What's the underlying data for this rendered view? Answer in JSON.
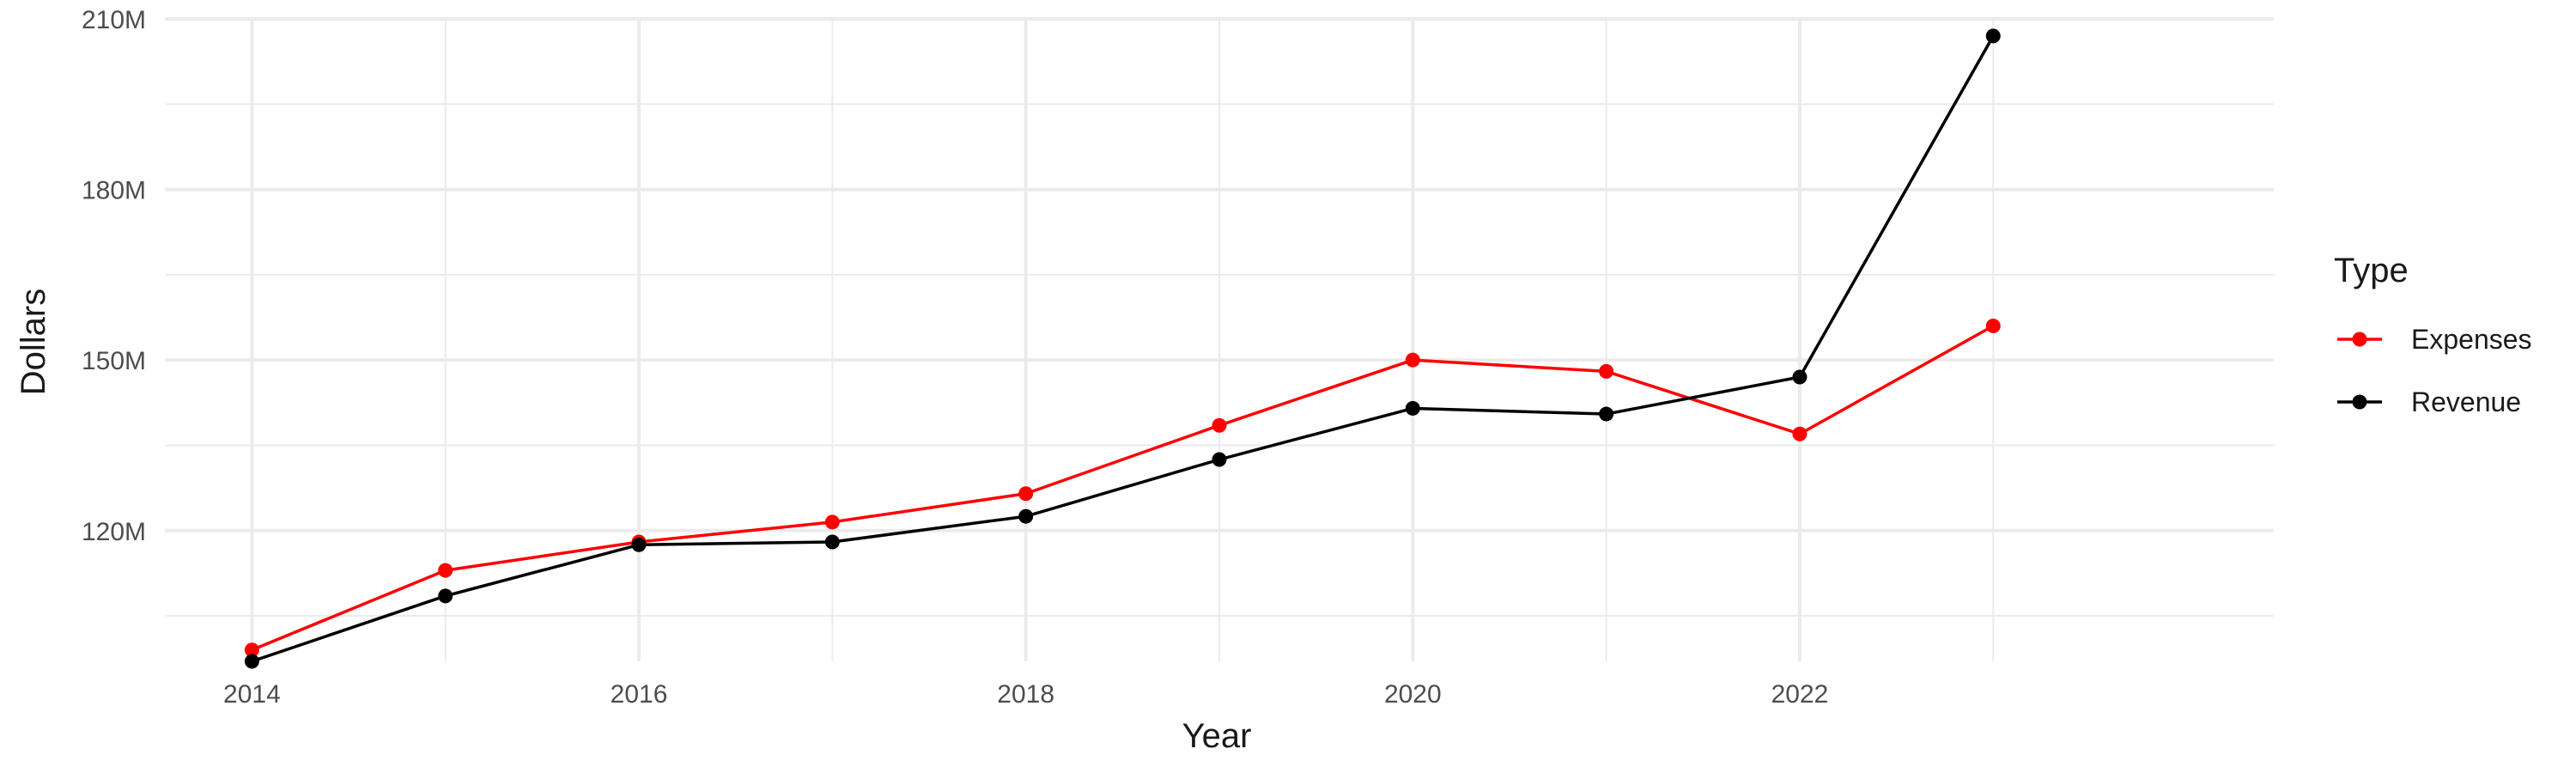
{
  "chart_data": {
    "type": "line",
    "title": "",
    "xlabel": "Year",
    "ylabel": "Dollars",
    "x": [
      2014,
      2015,
      2016,
      2017,
      2018,
      2019,
      2020,
      2021,
      2022,
      2023
    ],
    "xlim": [
      2013.55,
      2024.45
    ],
    "ylim": [
      97000000,
      210000000
    ],
    "x_ticks": [
      2014,
      2016,
      2018,
      2020,
      2022
    ],
    "x_tick_labels": [
      "2014",
      "2016",
      "2018",
      "2020",
      "2022"
    ],
    "y_ticks": [
      120000000,
      150000000,
      180000000,
      210000000
    ],
    "y_tick_labels": [
      "120M",
      "150M",
      "180M",
      "210M"
    ],
    "grid": true,
    "legend": {
      "title": "Type",
      "placement": "right"
    },
    "series": [
      {
        "name": "Expenses",
        "color": "#ff0000",
        "values": [
          99000000,
          113000000,
          118000000,
          121500000,
          126500000,
          138500000,
          150000000,
          148000000,
          137000000,
          156000000
        ]
      },
      {
        "name": "Revenue",
        "color": "#000000",
        "values": [
          97000000,
          108500000,
          117500000,
          118000000,
          122500000,
          132500000,
          141500000,
          140500000,
          147000000,
          207000000
        ]
      }
    ]
  }
}
